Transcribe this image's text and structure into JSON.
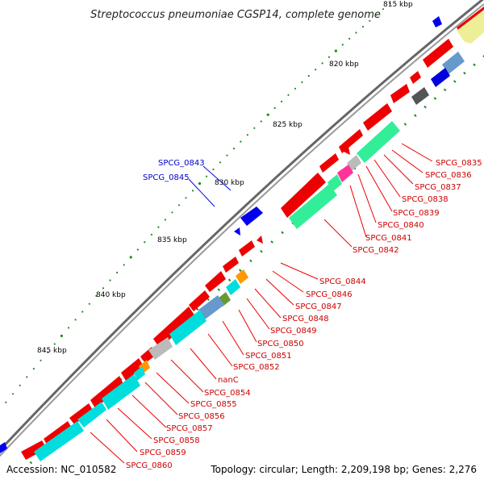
{
  "title": "Streptococcus pneumoniae CGSP14, complete genome",
  "footer": {
    "accession": "Accession: NC_010582",
    "summary": "Topology: circular; Length: 2,209,198 bp; Genes: 2,276"
  },
  "scale_labels": [
    "815 kbp",
    "820 kbp",
    "825 kbp",
    "830 kbp",
    "835 kbp",
    "840 kbp",
    "845 kbp"
  ],
  "gene_labels": {
    "outer": [
      "SPCG_0843",
      "SPCG_0845"
    ],
    "inner": [
      "SPCG_0835",
      "SPCG_0836",
      "SPCG_0837",
      "SPCG_0838",
      "SPCG_0839",
      "SPCG_0840",
      "SPCG_0841",
      "SPCG_0842",
      "SPCG_0844",
      "SPCG_0846",
      "SPCG_0847",
      "SPCG_0848",
      "SPCG_0849",
      "SPCG_0850",
      "SPCG_0851",
      "SPCG_0852",
      "nanC",
      "SPCG_0854",
      "SPCG_0855",
      "SPCG_0856",
      "SPCG_0857",
      "SPCG_0858",
      "SPCG_0859",
      "SPCG_0860"
    ]
  },
  "colors": {
    "forward_gene": "#0000ee",
    "reverse_gene": "#ee0000",
    "cog_cyan": "#00dddd",
    "cog_green": "#33ee99",
    "cog_gray": "#bbbbbb",
    "cog_orange": "#ff9900",
    "cog_steel": "#6699cc",
    "cog_olive": "#669933",
    "cog_magenta": "#ff3399",
    "cog_yellow": "#eeee99",
    "backbone": "#777777",
    "tick": "#228822"
  }
}
